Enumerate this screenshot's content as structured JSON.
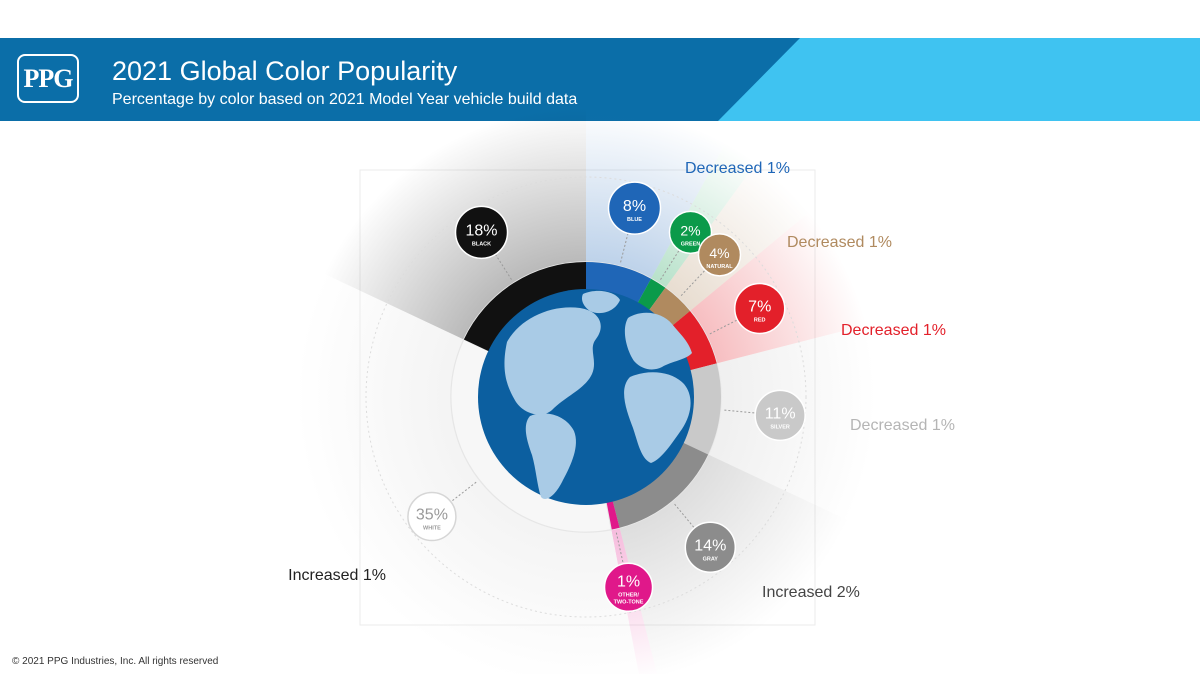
{
  "header": {
    "logo_text": "PPG",
    "title": "2021 Global Color Popularity",
    "subtitle": "Percentage by color based on 2021 Model Year vehicle build data",
    "colors": {
      "dark": "#0b6ea8",
      "light": "#3fc3f1"
    }
  },
  "footer": {
    "copyright": "© 2021 PPG Industries, Inc. All rights reserved"
  },
  "chart_data": {
    "type": "pie",
    "title": "2021 Global Color Popularity",
    "subtitle": "Percentage by color based on 2021 Model Year vehicle build data",
    "unit": "%",
    "center_icon": "globe-icon",
    "slices": [
      {
        "name": "BLUE",
        "value": 8,
        "label": "8%",
        "color": "#1f66b7",
        "change": "Decreased 1%",
        "change_color": "#1f66b7"
      },
      {
        "name": "GREEN",
        "value": 2,
        "label": "2%",
        "color": "#0b9a4a",
        "change": "",
        "change_color": ""
      },
      {
        "name": "NATURAL",
        "value": 4,
        "label": "4%",
        "color": "#b08a5f",
        "change": "Decreased 1%",
        "change_color": "#b08a5f"
      },
      {
        "name": "RED",
        "value": 7,
        "label": "7%",
        "color": "#e3202a",
        "change": "Decreased 1%",
        "change_color": "#e3202a"
      },
      {
        "name": "SILVER",
        "value": 11,
        "label": "11%",
        "color": "#c9c9c9",
        "change": "Decreased 1%",
        "change_color": "#b5b5b5"
      },
      {
        "name": "GRAY",
        "value": 14,
        "label": "14%",
        "color": "#8c8c8c",
        "change": "Increased 2%",
        "change_color": "#444444"
      },
      {
        "name": "OTHER/ TWO-TONE",
        "value": 1,
        "label": "1%",
        "color": "#e0188a",
        "change": "",
        "change_color": ""
      },
      {
        "name": "WHITE",
        "value": 35,
        "label": "35%",
        "color": "#ffffff",
        "change": "Increased 1%",
        "change_color": "#222222"
      },
      {
        "name": "BLACK",
        "value": 18,
        "label": "18%",
        "color": "#111111",
        "change": "",
        "change_color": ""
      }
    ]
  }
}
